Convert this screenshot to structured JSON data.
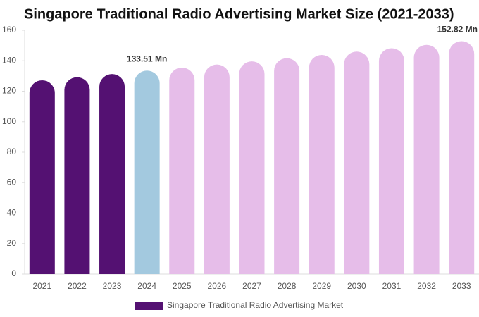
{
  "chart_data": {
    "type": "bar",
    "title": "Singapore Traditional Radio Advertising Market Size (2021-2033)",
    "categories": [
      "2021",
      "2022",
      "2023",
      "2024",
      "2025",
      "2026",
      "2027",
      "2028",
      "2029",
      "2030",
      "2031",
      "2032",
      "2033"
    ],
    "series": [
      {
        "name": "Singapore Traditional Radio Advertising Market",
        "color": "#541172",
        "values": [
          127.2,
          129.2,
          131.3,
          133.51,
          135.5,
          137.5,
          139.6,
          141.7,
          143.8,
          146.0,
          148.2,
          150.4,
          152.82
        ],
        "colors": [
          "#541172",
          "#541172",
          "#541172",
          "#a3c9df",
          "#e6bde9",
          "#e6bde9",
          "#e6bde9",
          "#e6bde9",
          "#e6bde9",
          "#e6bde9",
          "#e6bde9",
          "#e6bde9",
          "#e6bde9"
        ],
        "value_labels": [
          null,
          null,
          null,
          "133.51 Mn",
          null,
          null,
          null,
          null,
          null,
          null,
          null,
          null,
          "152.82 Mn"
        ]
      }
    ],
    "ylim": [
      0,
      160
    ],
    "yticks": [
      0,
      20,
      40,
      60,
      80,
      100,
      120,
      140,
      160
    ],
    "grid": false
  }
}
